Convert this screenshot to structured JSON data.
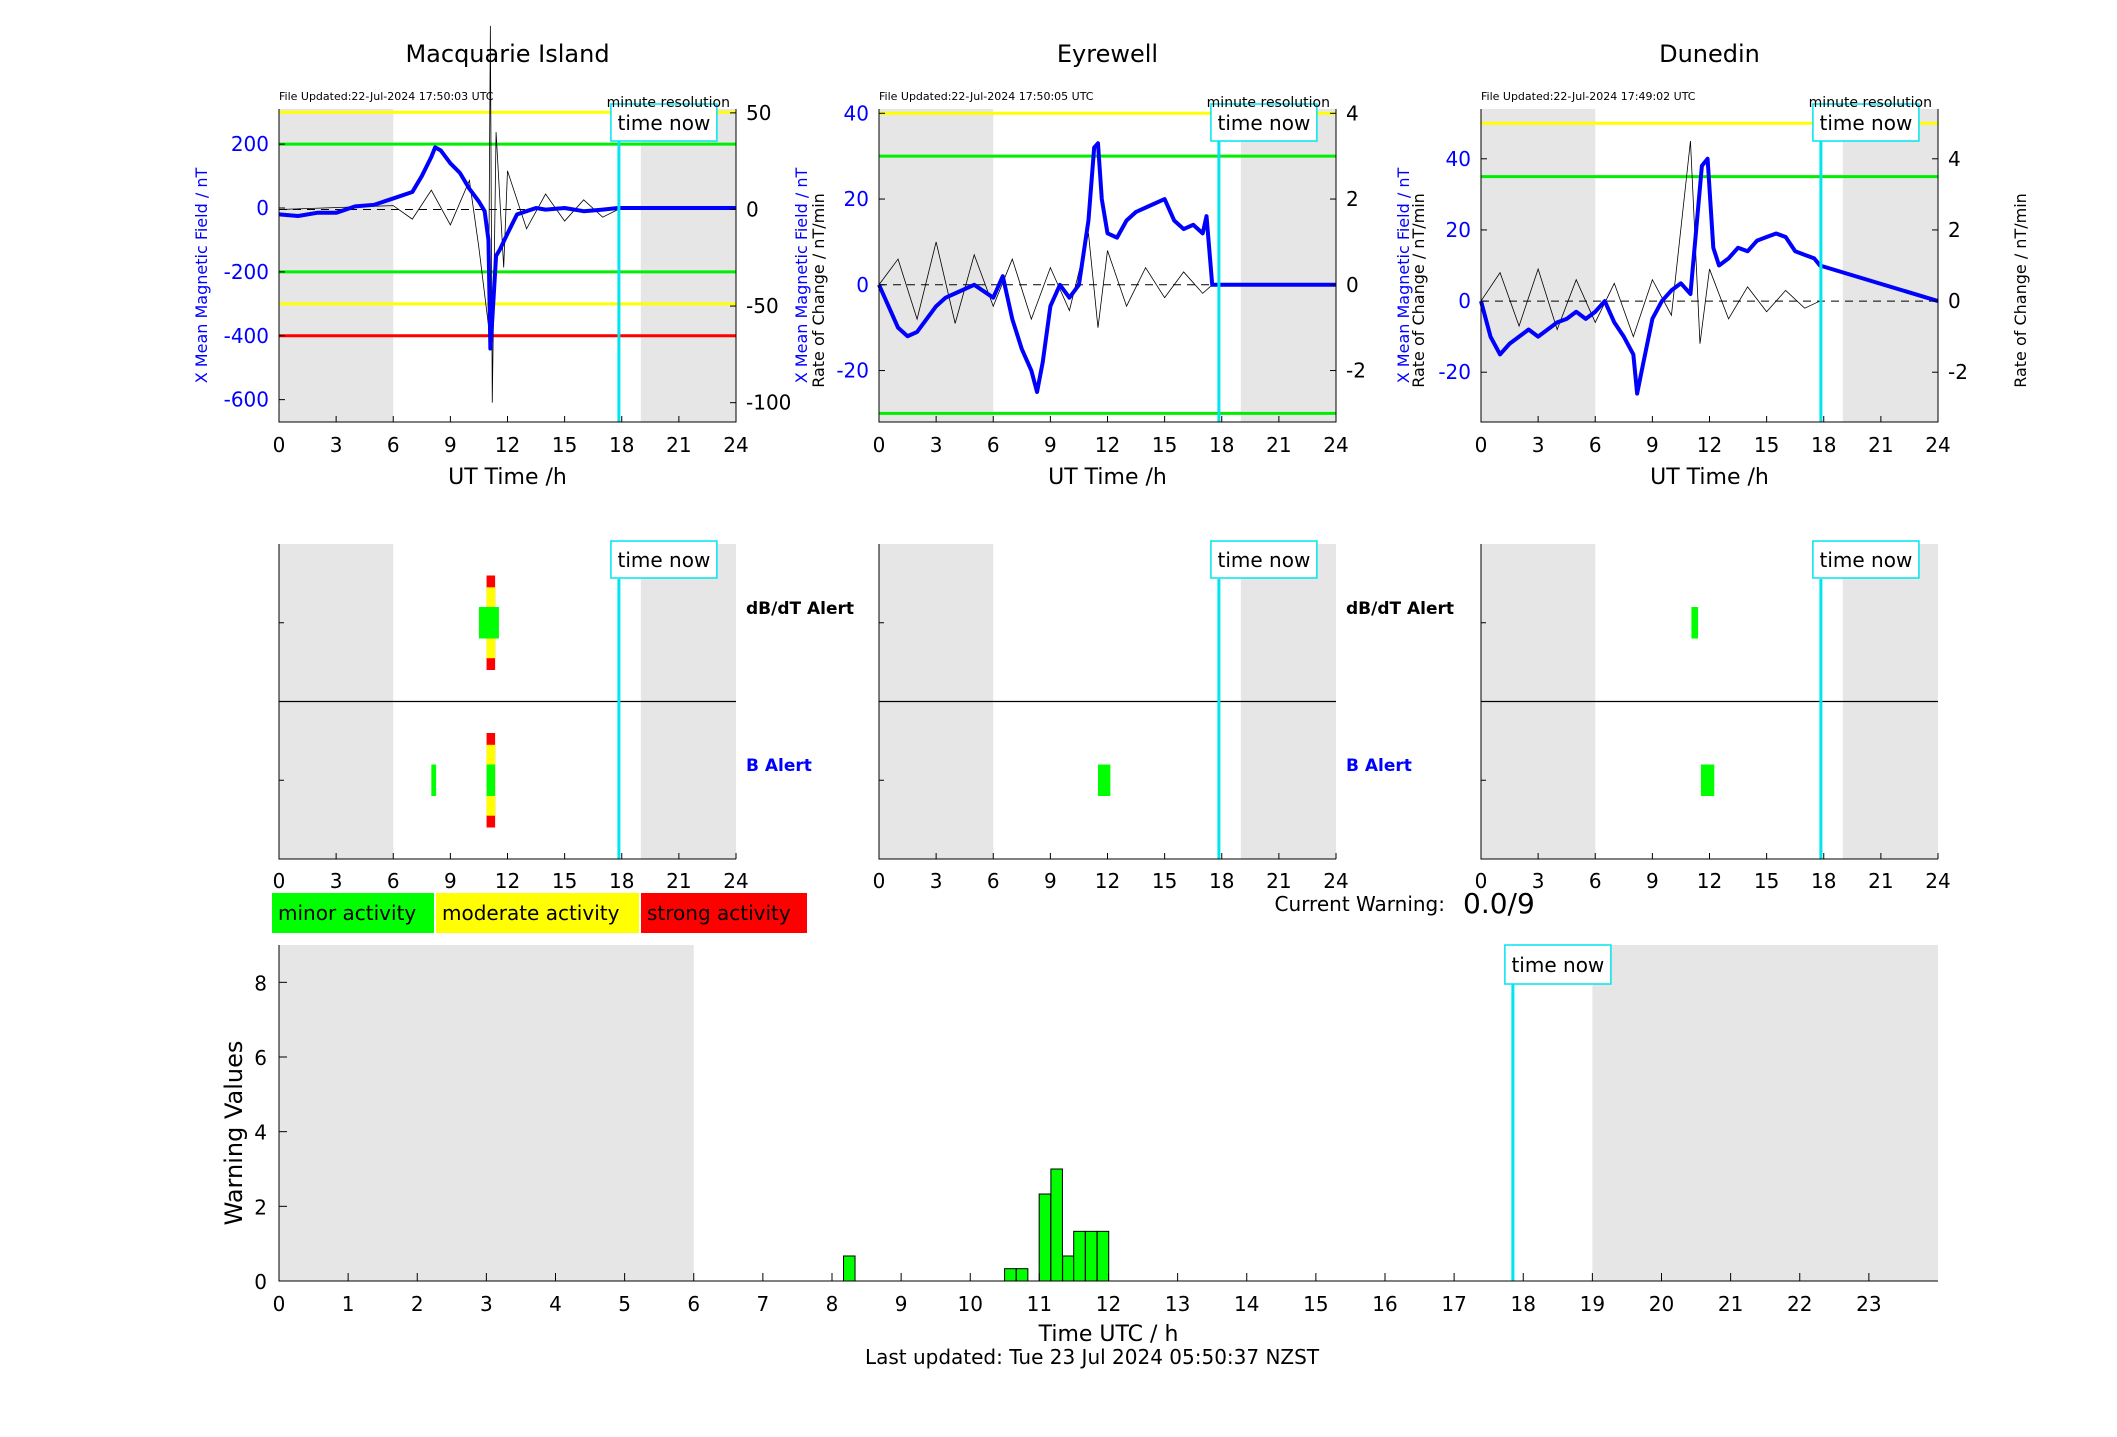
{
  "colors": {
    "night_shade": "#e6e6e6",
    "field_line": "#0000ff",
    "rate_line": "#000000",
    "time_now": "#00e5ee",
    "minor": "#00ff00",
    "moderate": "#ffff00",
    "strong": "#ff0000",
    "axis_blue": "#0000ff"
  },
  "time_now_label": "time now",
  "current_warning": {
    "label": "Current Warning:",
    "value": "0.0/9"
  },
  "last_updated": "Last updated: Tue 23 Jul 2024 05:50:37 NZST",
  "legend": [
    {
      "label": "minor activity",
      "color": "#00ff00"
    },
    {
      "label": "moderate activity",
      "color": "#ffff00"
    },
    {
      "label": "strong activity",
      "color": "#ff0000"
    }
  ],
  "alerts_axis": {
    "dbdt_label": "dB/dT Alert",
    "b_label": "B Alert"
  },
  "stations": [
    {
      "name": "Macquarie Island",
      "file_updated": "File Updated:22-Jul-2024 17:50:03 UTC",
      "resolution": "minute resolution",
      "xlabel": "UT Time /h",
      "ylabel_left": "X Mean Magnetic Field / nT",
      "ylabel_right": "Rate of Change / nT/min",
      "xticks": [
        "0",
        "3",
        "6",
        "9",
        "12",
        "15",
        "18",
        "21",
        "24"
      ],
      "yticks_left": [
        "200",
        "0",
        "-200",
        "-400",
        "-600"
      ],
      "yticks_right": [
        "50",
        "0",
        "-50",
        "-100"
      ],
      "chart_data": {
        "type": "line",
        "title": "Macquarie Island",
        "xlim": [
          0,
          24
        ],
        "ylim_left": [
          -670,
          310
        ],
        "ylim_right": [
          -110,
          52
        ],
        "night_shading_h": [
          [
            0,
            6
          ],
          [
            19,
            24
          ]
        ],
        "time_now_h": 17.85,
        "thresholds_nT": [
          {
            "value": 200,
            "color": "green"
          },
          {
            "value": -200,
            "color": "green"
          },
          {
            "value": 300,
            "color": "yellow"
          },
          {
            "value": -300,
            "color": "yellow"
          },
          {
            "value": -400,
            "color": "red"
          }
        ],
        "field_series": {
          "name": "X Mean Magnetic Field",
          "x": [
            0,
            1,
            2,
            3,
            4,
            5,
            6,
            7,
            7.5,
            8,
            8.2,
            8.5,
            9,
            9.5,
            10,
            10.5,
            10.8,
            11,
            11.1,
            11.2,
            11.4,
            11.6,
            12,
            12.5,
            13,
            13.5,
            14,
            15,
            16,
            17,
            17.8,
            24
          ],
          "y": [
            -20,
            -25,
            -15,
            -15,
            5,
            10,
            30,
            50,
            100,
            160,
            190,
            180,
            140,
            110,
            60,
            20,
            -10,
            -100,
            -440,
            -350,
            -150,
            -130,
            -80,
            -20,
            -10,
            0,
            -5,
            0,
            -10,
            -5,
            0,
            0
          ]
        },
        "rate_series": {
          "name": "Rate of Change",
          "x": [
            0,
            6,
            7,
            8,
            9,
            10,
            10.5,
            11,
            11.1,
            11.2,
            11.4,
            11.8,
            12,
            13,
            14,
            15,
            16,
            17,
            17.8
          ],
          "y": [
            0,
            2,
            -5,
            10,
            -8,
            15,
            -20,
            -60,
            95,
            -100,
            40,
            -30,
            20,
            -10,
            8,
            -6,
            5,
            -4,
            0
          ]
        }
      },
      "alerts": {
        "dbdt": [
          {
            "t0": 10.9,
            "t1": 11.35,
            "color": "#ff0000",
            "h": 0.6
          },
          {
            "t0": 10.9,
            "t1": 11.35,
            "color": "#ffff00",
            "h": 0.45
          },
          {
            "t0": 10.5,
            "t1": 11.55,
            "color": "#00ff00",
            "h": 0.2
          }
        ],
        "b": [
          {
            "t0": 8.0,
            "t1": 8.25,
            "color": "#00ff00",
            "h": 0.2
          },
          {
            "t0": 10.9,
            "t1": 11.35,
            "color": "#ff0000",
            "h": 0.6
          },
          {
            "t0": 10.9,
            "t1": 11.35,
            "color": "#ffff00",
            "h": 0.45
          },
          {
            "t0": 10.9,
            "t1": 11.35,
            "color": "#00ff00",
            "h": 0.2
          }
        ]
      }
    },
    {
      "name": "Eyrewell",
      "file_updated": "File Updated:22-Jul-2024 17:50:05 UTC",
      "resolution": "minute resolution",
      "xlabel": "UT Time /h",
      "ylabel_left": "X Mean Magnetic Field / nT",
      "ylabel_right": "Rate of Change / nT/min",
      "xticks": [
        "0",
        "3",
        "6",
        "9",
        "12",
        "15",
        "18",
        "21",
        "24"
      ],
      "yticks_left": [
        "40",
        "20",
        "0",
        "-20"
      ],
      "yticks_right": [
        "4",
        "2",
        "0",
        "-2"
      ],
      "chart_data": {
        "type": "line",
        "title": "Eyrewell",
        "xlim": [
          0,
          24
        ],
        "ylim_left": [
          -32,
          41
        ],
        "ylim_right": [
          -3.2,
          4.1
        ],
        "night_shading_h": [
          [
            0,
            6
          ],
          [
            19,
            24
          ]
        ],
        "time_now_h": 17.85,
        "thresholds_nT": [
          {
            "value": 30,
            "color": "green"
          },
          {
            "value": -30,
            "color": "green"
          },
          {
            "value": 40,
            "color": "yellow"
          }
        ],
        "field_series": {
          "name": "X Mean Magnetic Field",
          "x": [
            0,
            0.5,
            1,
            1.5,
            2,
            2.5,
            3,
            3.5,
            4,
            5,
            6,
            6.5,
            7,
            7.5,
            8,
            8.3,
            8.6,
            9,
            9.5,
            10,
            10.5,
            11,
            11.3,
            11.5,
            11.7,
            12,
            12.5,
            13,
            13.5,
            14,
            15,
            15.5,
            16,
            16.5,
            17,
            17.2,
            17.5,
            24
          ],
          "y": [
            0,
            -5,
            -10,
            -12,
            -11,
            -8,
            -5,
            -3,
            -2,
            0,
            -3,
            2,
            -8,
            -15,
            -20,
            -25,
            -18,
            -5,
            0,
            -3,
            0,
            15,
            32,
            33,
            20,
            12,
            11,
            15,
            17,
            18,
            20,
            15,
            13,
            14,
            12,
            16,
            0,
            0
          ]
        },
        "rate_series": {
          "name": "Rate of Change",
          "x": [
            0,
            1,
            2,
            3,
            4,
            5,
            6,
            7,
            8,
            9,
            10,
            11,
            11.5,
            12,
            13,
            14,
            15,
            16,
            17,
            17.5
          ],
          "y": [
            0,
            0.6,
            -0.8,
            1.0,
            -0.9,
            0.7,
            -0.5,
            0.6,
            -0.8,
            0.4,
            -0.6,
            1.2,
            -1.0,
            0.8,
            -0.5,
            0.4,
            -0.3,
            0.3,
            -0.2,
            0
          ]
        }
      },
      "alerts": {
        "dbdt": [],
        "b": [
          {
            "t0": 11.5,
            "t1": 12.15,
            "color": "#00ff00",
            "h": 0.2
          }
        ]
      }
    },
    {
      "name": "Dunedin",
      "file_updated": "File Updated:22-Jul-2024 17:49:02 UTC",
      "resolution": "minute resolution",
      "xlabel": "UT Time /h",
      "ylabel_left": "X Mean Magnetic Field / nT",
      "ylabel_right": "Rate of Change / nT/min",
      "xticks": [
        "0",
        "3",
        "6",
        "9",
        "12",
        "15",
        "18",
        "21",
        "24"
      ],
      "yticks_left": [
        "40",
        "20",
        "0",
        "-20"
      ],
      "yticks_right": [
        "4",
        "2",
        "0",
        "-2"
      ],
      "chart_data": {
        "type": "line",
        "title": "Dunedin",
        "xlim": [
          0,
          24
        ],
        "ylim_left": [
          -34,
          54
        ],
        "ylim_right": [
          -3.4,
          5.4
        ],
        "night_shading_h": [
          [
            0,
            6
          ],
          [
            19,
            24
          ]
        ],
        "time_now_h": 17.85,
        "thresholds_nT": [
          {
            "value": 35,
            "color": "green"
          },
          {
            "value": 50,
            "color": "yellow"
          }
        ],
        "field_series": {
          "name": "X Mean Magnetic Field",
          "x": [
            0,
            0.5,
            1,
            1.5,
            2,
            2.5,
            3,
            3.5,
            4,
            4.5,
            5,
            5.5,
            6,
            6.5,
            7,
            7.5,
            8,
            8.2,
            8.5,
            9,
            9.5,
            10,
            10.5,
            11,
            11.3,
            11.6,
            11.9,
            12.2,
            12.5,
            13,
            13.5,
            14,
            14.5,
            15,
            15.5,
            16,
            16.5,
            17,
            17.5,
            17.8,
            24
          ],
          "y": [
            0,
            -10,
            -15,
            -12,
            -10,
            -8,
            -10,
            -8,
            -6,
            -5,
            -3,
            -5,
            -3,
            0,
            -6,
            -10,
            -15,
            -26,
            -18,
            -5,
            0,
            3,
            5,
            2,
            20,
            38,
            40,
            15,
            10,
            12,
            15,
            14,
            17,
            18,
            19,
            18,
            14,
            13,
            12,
            10,
            0
          ]
        },
        "rate_series": {
          "name": "Rate of Change",
          "x": [
            0,
            1,
            2,
            3,
            4,
            5,
            6,
            7,
            8,
            9,
            10,
            11,
            11.5,
            12,
            13,
            14,
            15,
            16,
            17,
            17.8
          ],
          "y": [
            0,
            0.8,
            -0.7,
            0.9,
            -0.8,
            0.6,
            -0.6,
            0.5,
            -1.0,
            0.6,
            -0.4,
            4.5,
            -1.2,
            0.9,
            -0.5,
            0.4,
            -0.3,
            0.3,
            -0.2,
            0
          ]
        }
      },
      "alerts": {
        "dbdt": [
          {
            "t0": 11.05,
            "t1": 11.4,
            "color": "#00ff00",
            "h": 0.2
          }
        ],
        "b": [
          {
            "t0": 11.55,
            "t1": 12.25,
            "color": "#00ff00",
            "h": 0.2
          }
        ]
      }
    }
  ],
  "warning_chart": {
    "chart_data": {
      "type": "bar",
      "xlabel": "Time UTC / h",
      "ylabel": "Warning Values",
      "xlim": [
        0,
        24
      ],
      "ylim": [
        0,
        9
      ],
      "xticks": [
        "0",
        "1",
        "2",
        "3",
        "4",
        "5",
        "6",
        "7",
        "8",
        "9",
        "10",
        "11",
        "12",
        "13",
        "14",
        "15",
        "16",
        "17",
        "18",
        "19",
        "20",
        "21",
        "22",
        "23"
      ],
      "yticks": [
        "0",
        "2",
        "4",
        "6",
        "8"
      ],
      "night_shading_h": [
        [
          0,
          6
        ],
        [
          19,
          24
        ]
      ],
      "time_now_h": 17.85,
      "bar_width_h": 0.1667,
      "bars": [
        {
          "t": 8.25,
          "v": 0.67
        },
        {
          "t": 10.58,
          "v": 0.33
        },
        {
          "t": 10.75,
          "v": 0.33
        },
        {
          "t": 11.08,
          "v": 2.33
        },
        {
          "t": 11.25,
          "v": 3.0
        },
        {
          "t": 11.42,
          "v": 0.67
        },
        {
          "t": 11.58,
          "v": 1.33
        },
        {
          "t": 11.75,
          "v": 1.33
        },
        {
          "t": 11.92,
          "v": 1.33
        }
      ]
    }
  }
}
